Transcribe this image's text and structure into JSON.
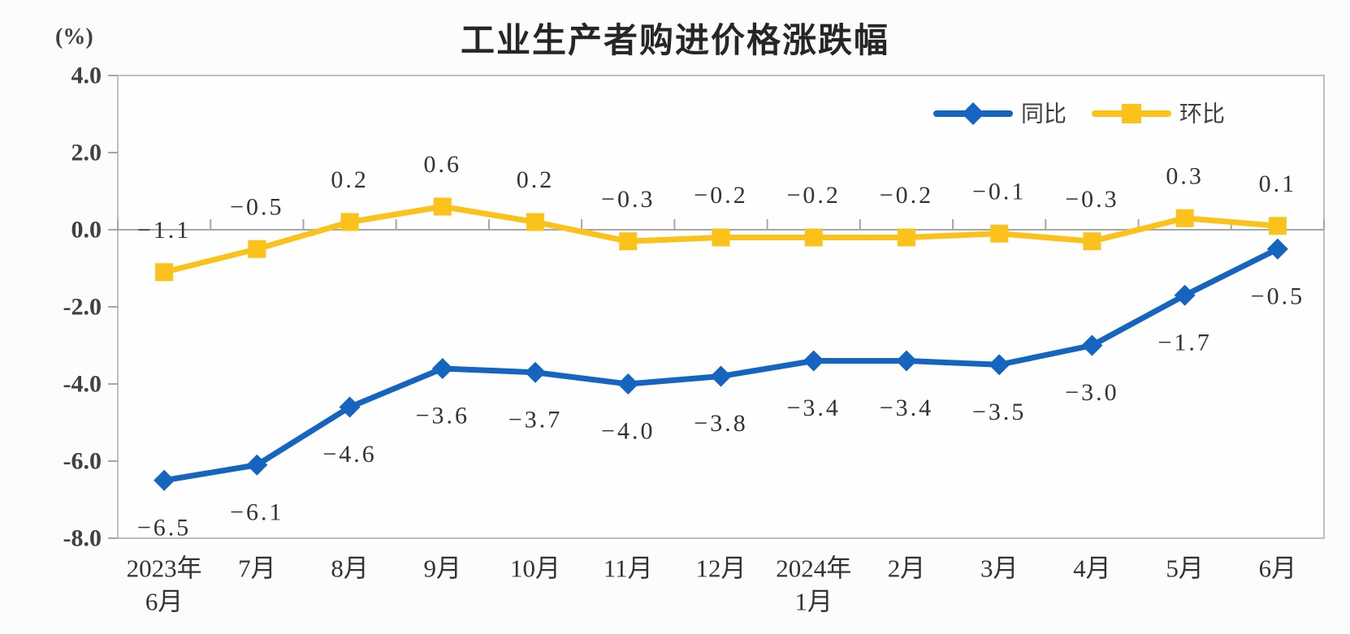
{
  "chart_data": {
    "type": "line",
    "title": "工业生产者购进价格涨跌幅",
    "unit_label": "(%)",
    "categories": [
      "2023年\n6月",
      "7月",
      "8月",
      "9月",
      "10月",
      "11月",
      "12月",
      "2024年\n1月",
      "2月",
      "3月",
      "4月",
      "5月",
      "6月"
    ],
    "series": [
      {
        "name": "同比",
        "marker": "diamond",
        "color": "#1565C0",
        "label_position": "below",
        "values": [
          -6.5,
          -6.1,
          -4.6,
          -3.6,
          -3.7,
          -4.0,
          -3.8,
          -3.4,
          -3.4,
          -3.5,
          -3.0,
          -1.7,
          -0.5
        ]
      },
      {
        "name": "环比",
        "marker": "square",
        "color": "#FBC21B",
        "label_position": "above",
        "values": [
          -1.1,
          -0.5,
          0.2,
          0.6,
          0.2,
          -0.3,
          -0.2,
          -0.2,
          -0.2,
          -0.1,
          -0.3,
          0.3,
          0.1
        ]
      }
    ],
    "y_axis": {
      "min": -8.0,
      "max": 4.0,
      "step": 2.0,
      "tick_labels": [
        "4.0",
        "2.0",
        "0.0",
        "-2.0",
        "-4.0",
        "-6.0",
        "-8.0"
      ]
    },
    "grid": false,
    "legend": {
      "position": "top-right",
      "entries": [
        "同比",
        "环比"
      ]
    },
    "styles": {
      "border_color": "#BFBFBF",
      "axis_line_color": "#A6A6A6",
      "plot_fill": "#FEFEFE"
    }
  }
}
